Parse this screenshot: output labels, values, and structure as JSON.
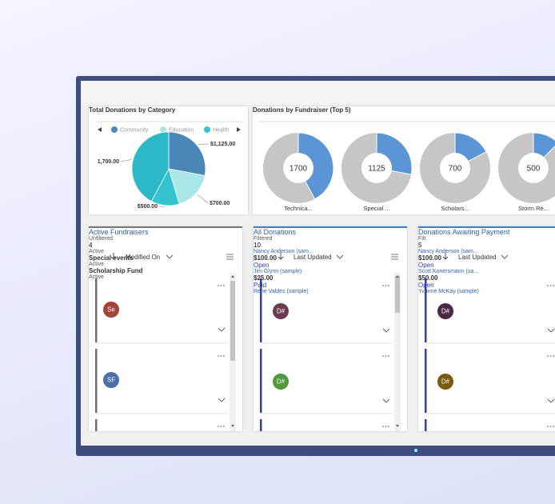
{
  "pie_panel": {
    "title": "Total Donations by Category",
    "legend": [
      {
        "name": "Community",
        "color": "#4a86b8"
      },
      {
        "name": "Education",
        "color": "#a9e6e8"
      },
      {
        "name": "Health",
        "color": "#35c4cf"
      }
    ],
    "slices": [
      {
        "value": 1125,
        "label": "$1,125.00",
        "color": "#4a86b8"
      },
      {
        "value": 700,
        "label": "$700.00",
        "color": "#a9e6e8"
      },
      {
        "value": 500,
        "label": "$500.00",
        "color": "#35c4cf"
      },
      {
        "value": 1700,
        "label": "1,700.00",
        "color": "#2cb8c6"
      }
    ]
  },
  "donut_panel": {
    "title": "Donations by Fundraiser (Top 5)",
    "color": "#5b95d6",
    "rest_color": "#c6c6c6",
    "items": [
      {
        "value": 1700,
        "label": "Technica..."
      },
      {
        "value": 1125,
        "label": "Special ..."
      },
      {
        "value": 700,
        "label": "Scholars..."
      },
      {
        "value": 500,
        "label": "Storm Re..."
      }
    ]
  },
  "lists": [
    {
      "title": "Active Fundraisers",
      "filter": "Unfiltered",
      "count": 4,
      "sort": "Modified On",
      "accent": "#707070",
      "cards": [
        {
          "status": "Active",
          "initials": "Se",
          "name": "Special events",
          "avatar_color": "#a3443a"
        },
        {
          "status": "Active",
          "initials": "SF",
          "name": "Scholarship Fund",
          "avatar_color": "#4b6fa8"
        },
        {
          "status": "Active"
        }
      ]
    },
    {
      "title": "All Donations",
      "filter": "Filtered",
      "count": 10,
      "sort": "Last Updated",
      "accent": "#2f3fb5",
      "cards": [
        {
          "name": "Nancy Anderson (sam...",
          "initials": "D#",
          "amount": "$100.00",
          "status": "Open",
          "avatar_color": "#6b3a4e"
        },
        {
          "name": "Jim Glynn (sample)",
          "initials": "D#",
          "amount": "$25.00",
          "status": "Paid",
          "avatar_color": "#4f9a3c"
        },
        {
          "name": "Rene Valdes (sample)"
        }
      ]
    },
    {
      "title": "Donations Awaiting Payment",
      "filter": "Filt",
      "count": 5,
      "sort": "Last Updated",
      "accent": "#2f3fb5",
      "cards": [
        {
          "name": "Nancy Anderson (sam...",
          "initials": "D#",
          "amount": "$100.00",
          "status": "Open",
          "avatar_color": "#4a2a40"
        },
        {
          "name": "Scott Konersmann (sa...",
          "initials": "D#",
          "amount": "$50.00",
          "status": "Open",
          "avatar_color": "#7a5a10"
        },
        {
          "name": "Yvonne McKay (sample)"
        }
      ]
    }
  ]
}
